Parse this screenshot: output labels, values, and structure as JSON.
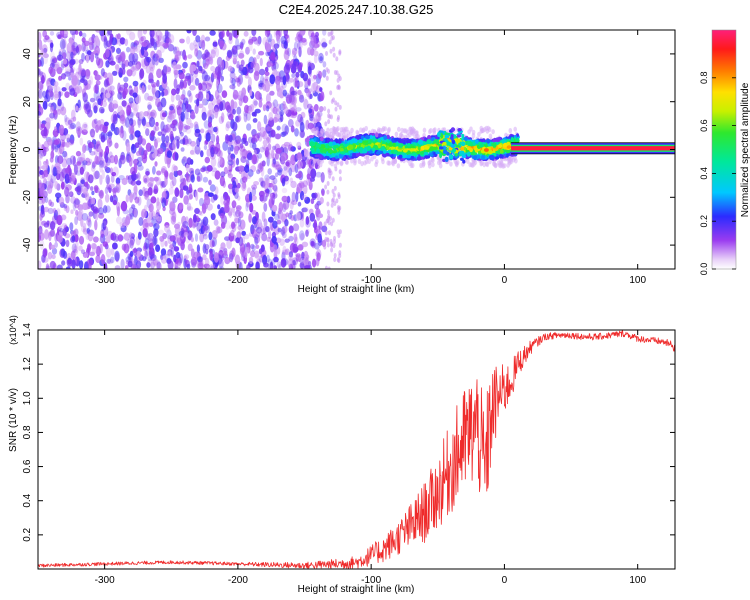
{
  "title": "C2E4.2025.247.10.38.G25",
  "colors": {
    "snr_line": "#ef2b2b",
    "frame": "#000000",
    "spec_low": "#7a1fe0",
    "spec_mid": "#1ec46a",
    "spec_high": "#ff1f1f"
  },
  "chart_data": [
    {
      "type": "heatmap",
      "name": "spectrogram",
      "xlabel": "Height of straight line (km)",
      "ylabel": "Frequency (Hz)",
      "xlim": [
        -350,
        128
      ],
      "ylim": [
        -50,
        50
      ],
      "xticks": [
        -300,
        -200,
        -100,
        0,
        100
      ],
      "yticks": [
        -40,
        -20,
        0,
        20,
        40
      ],
      "colorbar": {
        "label": "Normalized spectral amplitude",
        "range": [
          0,
          1
        ],
        "ticks": [
          0.0,
          0.2,
          0.4,
          0.6,
          0.8
        ]
      },
      "regions": [
        {
          "description": "noise",
          "x_range": [
            -350,
            -135
          ],
          "y_range": [
            -50,
            50
          ],
          "amplitude": 0.15
        },
        {
          "description": "signal band",
          "x_range": [
            -145,
            10
          ],
          "y_center": 1,
          "y_halfwidth": 4,
          "amplitude": 0.45
        },
        {
          "description": "signal line",
          "x_range": [
            5,
            128
          ],
          "y_center": 0.5,
          "y_halfwidth": 1.5,
          "amplitude": 0.95
        }
      ]
    },
    {
      "type": "line",
      "name": "snr",
      "xlabel": "Height of straight line (km)",
      "ylabel": "SNR (10 * v/v)",
      "ymultiplier": "(x10^4)",
      "xlim": [
        -350,
        128
      ],
      "ylim": [
        0,
        1.4
      ],
      "xticks": [
        -300,
        -200,
        -100,
        0,
        100
      ],
      "yticks": [
        0.2,
        0.4,
        0.6,
        0.8,
        1.0,
        1.2,
        1.4
      ],
      "series": [
        {
          "name": "SNR",
          "x": [
            -350,
            -300,
            -250,
            -200,
            -150,
            -125,
            -110,
            -100,
            -90,
            -80,
            -70,
            -60,
            -50,
            -40,
            -30,
            -20,
            -15,
            -10,
            -5,
            0,
            5,
            10,
            20,
            30,
            40,
            50,
            60,
            70,
            80,
            90,
            100,
            110,
            120,
            128
          ],
          "values": [
            0.02,
            0.03,
            0.04,
            0.03,
            0.02,
            0.03,
            0.04,
            0.08,
            0.12,
            0.18,
            0.25,
            0.33,
            0.45,
            0.6,
            0.75,
            0.85,
            0.55,
            0.9,
            1.0,
            1.05,
            1.1,
            1.2,
            1.3,
            1.36,
            1.37,
            1.37,
            1.36,
            1.36,
            1.37,
            1.38,
            1.35,
            1.34,
            1.33,
            1.3
          ],
          "spread": [
            0.01,
            0.01,
            0.01,
            0.01,
            0.02,
            0.03,
            0.04,
            0.06,
            0.08,
            0.1,
            0.14,
            0.18,
            0.22,
            0.28,
            0.32,
            0.35,
            0.4,
            0.3,
            0.2,
            0.15,
            0.12,
            0.08,
            0.04,
            0.02,
            0.02,
            0.02,
            0.02,
            0.02,
            0.02,
            0.02,
            0.02,
            0.02,
            0.02,
            0.03
          ]
        }
      ]
    }
  ]
}
